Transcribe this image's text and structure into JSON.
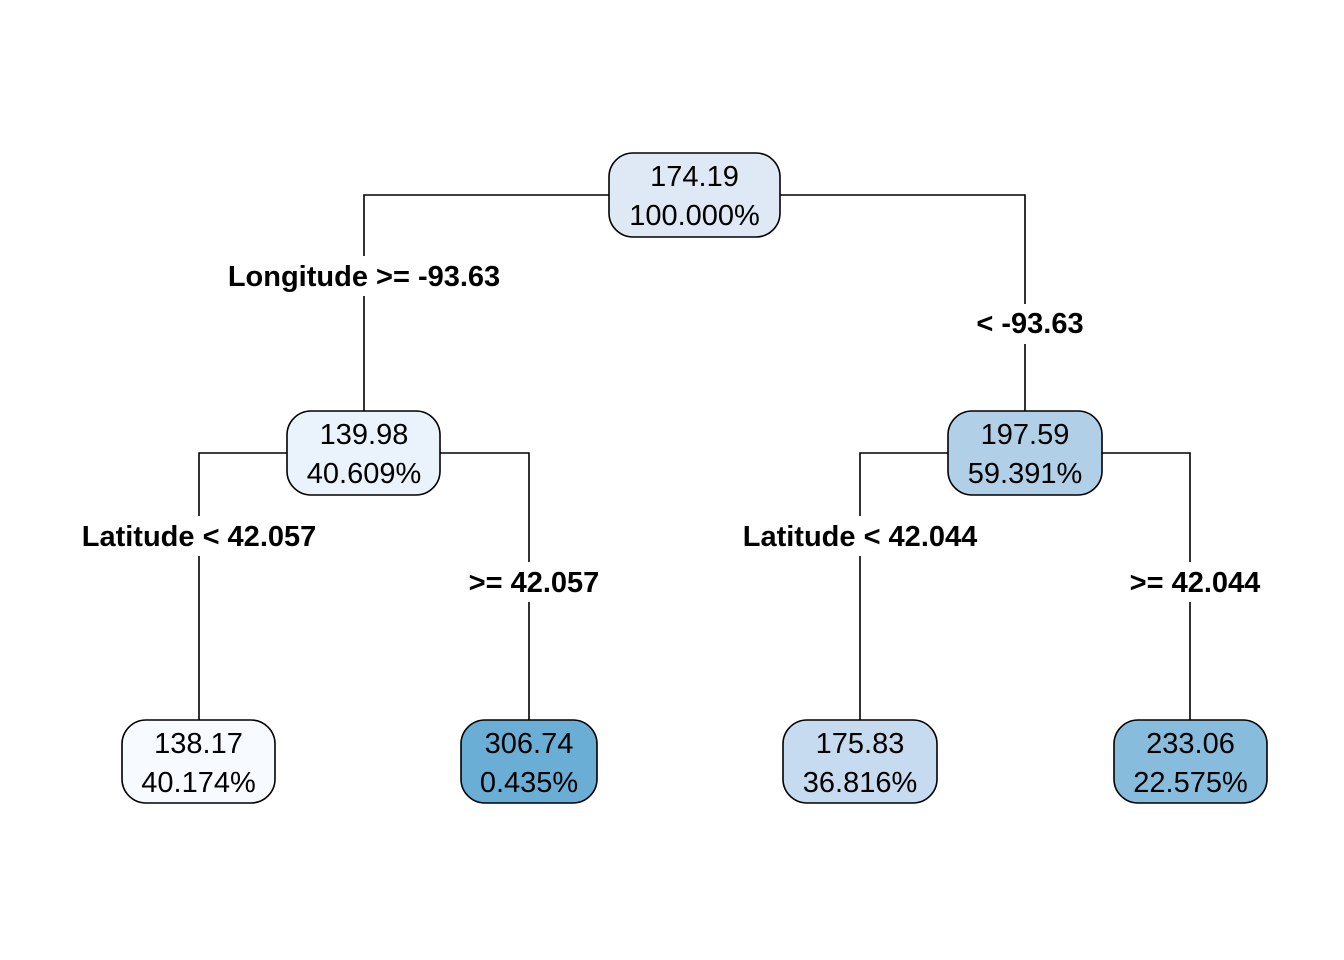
{
  "tree": {
    "nodes": [
      {
        "id": "root",
        "value": "174.19",
        "percent": "100.000%",
        "fill": "#dee9f5"
      },
      {
        "id": "left",
        "value": "139.98",
        "percent": "40.609%",
        "fill": "#eaf2fb"
      },
      {
        "id": "right",
        "value": "197.59",
        "percent": "59.391%",
        "fill": "#b1d0e7"
      },
      {
        "id": "left-left",
        "value": "138.17",
        "percent": "40.174%",
        "fill": "#f7fbff"
      },
      {
        "id": "left-right",
        "value": "306.74",
        "percent": "0.435%",
        "fill": "#6aaed6"
      },
      {
        "id": "right-left",
        "value": "175.83",
        "percent": "36.816%",
        "fill": "#c6dbef"
      },
      {
        "id": "right-right",
        "value": "233.06",
        "percent": "22.575%",
        "fill": "#87bcdc"
      }
    ],
    "splits": [
      {
        "id": "root-left",
        "label": "Longitude >= -93.63"
      },
      {
        "id": "root-right",
        "label": "< -93.63"
      },
      {
        "id": "left-left",
        "label": "Latitude < 42.057"
      },
      {
        "id": "left-right",
        "label": ">= 42.057"
      },
      {
        "id": "right-left",
        "label": "Latitude < 42.044"
      },
      {
        "id": "right-right",
        "label": ">= 42.044"
      }
    ]
  }
}
